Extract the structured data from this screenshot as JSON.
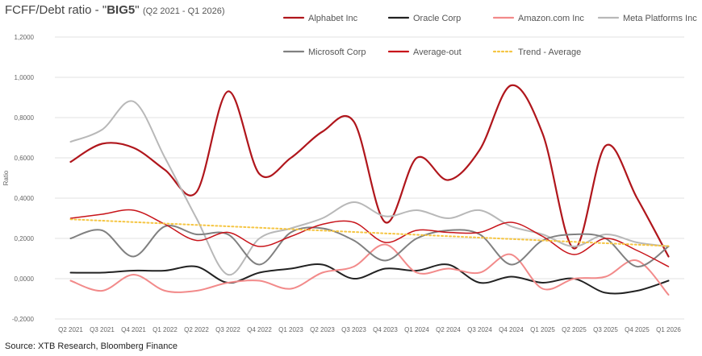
{
  "header": {
    "title_prefix": "FCFF/Debt ratio - \"",
    "title_bold": "BIG5",
    "title_suffix": "\"",
    "subtitle": "(Q2 2021 - Q1 2026)"
  },
  "source": "Source: XTB Research, Bloomberg Finance",
  "chart_data": {
    "type": "line",
    "title": "FCFF/Debt ratio - \"BIG5\"",
    "subtitle": "(Q2 2021 - Q1 2026)",
    "xlabel": "",
    "ylabel": "Ratio",
    "ylim": [
      -0.2,
      1.2
    ],
    "yticks": [
      "-0,2000",
      "0,0000",
      "0,2000",
      "0,4000",
      "0,6000",
      "0,8000",
      "1,0000",
      "1,2000"
    ],
    "ytick_values": [
      -0.2,
      0.0,
      0.2,
      0.4,
      0.6,
      0.8,
      1.0,
      1.2
    ],
    "grid": "horizontal",
    "legend_position": "top-right",
    "categories": [
      "Q2 2021",
      "Q3 2021",
      "Q4 2021",
      "Q1 2022",
      "Q2 2022",
      "Q3 2022",
      "Q4 2022",
      "Q1 2023",
      "Q2 2023",
      "Q3 2023",
      "Q4 2023",
      "Q1 2024",
      "Q2 2024",
      "Q3 2024",
      "Q4 2024",
      "Q1 2025",
      "Q2 2025",
      "Q3 2025",
      "Q4 2025",
      "Q1 2026"
    ],
    "series": [
      {
        "name": "Alphabet Inc",
        "color": "#b0161c",
        "width": 2.2,
        "dash": "",
        "values": [
          0.58,
          0.67,
          0.65,
          0.54,
          0.43,
          0.93,
          0.52,
          0.6,
          0.73,
          0.78,
          0.28,
          0.6,
          0.49,
          0.64,
          0.96,
          0.72,
          0.15,
          0.66,
          0.4,
          0.11
        ]
      },
      {
        "name": "Oracle Corp",
        "color": "#222222",
        "width": 2,
        "dash": "",
        "values": [
          0.03,
          0.03,
          0.04,
          0.04,
          0.06,
          -0.02,
          0.03,
          0.05,
          0.07,
          0.0,
          0.05,
          0.04,
          0.07,
          -0.02,
          0.01,
          -0.02,
          0.0,
          -0.07,
          -0.06,
          -0.01
        ]
      },
      {
        "name": "Amazon.com Inc",
        "color": "#f28a8a",
        "width": 2,
        "dash": "",
        "values": [
          -0.01,
          -0.06,
          0.02,
          -0.06,
          -0.06,
          -0.02,
          -0.01,
          -0.05,
          0.03,
          0.06,
          0.17,
          0.03,
          0.05,
          0.03,
          0.12,
          -0.05,
          0.0,
          0.01,
          0.09,
          -0.08
        ]
      },
      {
        "name": "Meta Platforms Inc",
        "color": "#b8b8b8",
        "width": 2,
        "dash": "",
        "values": [
          0.68,
          0.74,
          0.88,
          0.6,
          0.3,
          0.02,
          0.2,
          0.25,
          0.3,
          0.38,
          0.31,
          0.34,
          0.3,
          0.34,
          0.26,
          0.22,
          0.16,
          0.22,
          0.18,
          0.16
        ]
      },
      {
        "name": "Microsoft Corp",
        "color": "#808080",
        "width": 2,
        "dash": "",
        "values": [
          0.2,
          0.24,
          0.11,
          0.26,
          0.22,
          0.22,
          0.07,
          0.23,
          0.25,
          0.19,
          0.09,
          0.2,
          0.24,
          0.22,
          0.07,
          0.19,
          0.22,
          0.2,
          0.06,
          0.16
        ]
      },
      {
        "name": "Average-out",
        "color": "#c8141a",
        "width": 1.5,
        "dash": "",
        "values": [
          0.3,
          0.32,
          0.34,
          0.27,
          0.19,
          0.23,
          0.16,
          0.21,
          0.27,
          0.28,
          0.18,
          0.24,
          0.23,
          0.23,
          0.28,
          0.21,
          0.12,
          0.2,
          0.14,
          0.06
        ]
      },
      {
        "name": "Trend - Average",
        "color": "#f5c542",
        "width": 2,
        "dash": "2,3",
        "values": [
          0.295,
          0.288,
          0.281,
          0.274,
          0.267,
          0.26,
          0.253,
          0.246,
          0.239,
          0.232,
          0.225,
          0.218,
          0.211,
          0.204,
          0.197,
          0.19,
          0.183,
          0.176,
          0.169,
          0.162
        ]
      }
    ]
  }
}
